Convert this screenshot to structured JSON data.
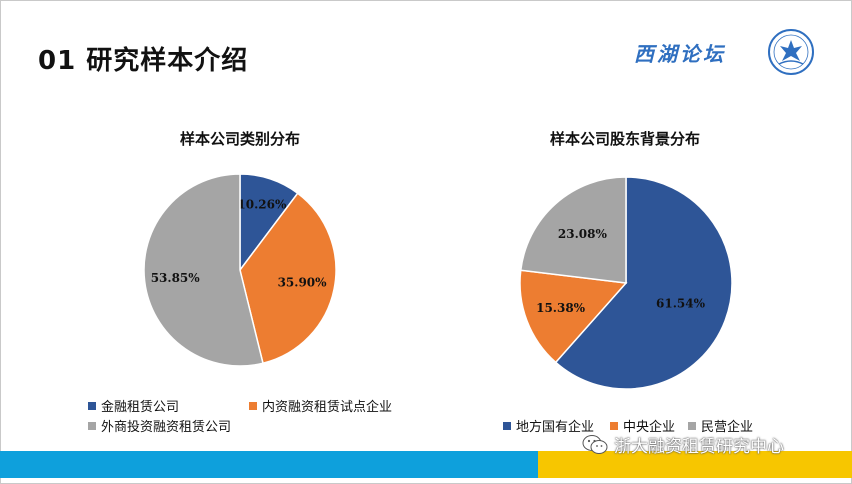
{
  "header": {
    "title": "01  研究样本介绍",
    "forum_logo": "西湖论坛"
  },
  "footer": {
    "watermark": "浙大融资租赁研究中心"
  },
  "chart_data": [
    {
      "type": "pie",
      "title": "样本公司类别分布",
      "series": [
        {
          "name": "金融租赁公司",
          "value": 10.26,
          "label": "10.26%",
          "color": "#2e5597"
        },
        {
          "name": "内资融资租赁试点企业",
          "value": 35.9,
          "label": "35.90%",
          "color": "#ed7d31"
        },
        {
          "name": "外商投资融资租赁公司",
          "value": 53.85,
          "label": "53.85%",
          "color": "#a5a5a5"
        }
      ],
      "legend": "bottom"
    },
    {
      "type": "pie",
      "title": "样本公司股东背景分布",
      "series": [
        {
          "name": "地方国有企业",
          "value": 61.54,
          "label": "61.54%",
          "color": "#2e5597"
        },
        {
          "name": "中央企业",
          "value": 15.38,
          "label": "15.38%",
          "color": "#ed7d31"
        },
        {
          "name": "民营企业",
          "value": 23.08,
          "label": "23.08%",
          "color": "#a5a5a5"
        }
      ],
      "legend": "bottom"
    }
  ]
}
